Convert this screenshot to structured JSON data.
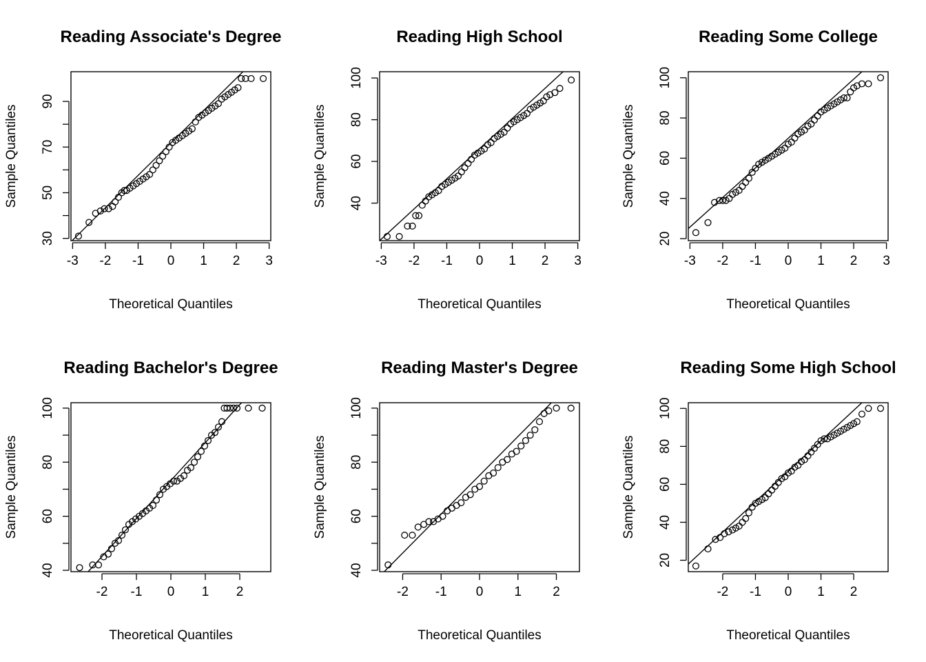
{
  "chart_data": [
    {
      "type": "scatter",
      "title": "Reading Associate's Degree",
      "xlabel": "Theoretical Quantiles",
      "ylabel": "Sample Quantiles",
      "xlim": [
        -3.05,
        3.05
      ],
      "ylim": [
        29,
        103
      ],
      "xticks": [
        -3,
        -2,
        -1,
        0,
        1,
        2,
        3
      ],
      "yticks": [
        30,
        40,
        50,
        60,
        70,
        80,
        90
      ],
      "ytick_labels": [
        "30",
        "50",
        "70",
        "90"
      ],
      "reference_line": [
        [
          -3.05,
          28.5
        ],
        [
          2.2,
          103
        ]
      ],
      "points": [
        [
          -2.82,
          31
        ],
        [
          -2.5,
          37
        ],
        [
          -2.3,
          41
        ],
        [
          -2.15,
          42
        ],
        [
          -2.03,
          43
        ],
        [
          -1.9,
          43
        ],
        [
          -1.78,
          44
        ],
        [
          -1.7,
          46
        ],
        [
          -1.6,
          48
        ],
        [
          -1.5,
          50
        ],
        [
          -1.42,
          51
        ],
        [
          -1.35,
          51
        ],
        [
          -1.25,
          52
        ],
        [
          -1.15,
          53
        ],
        [
          -1.05,
          54
        ],
        [
          -0.95,
          55
        ],
        [
          -0.85,
          56
        ],
        [
          -0.75,
          57
        ],
        [
          -0.65,
          58
        ],
        [
          -0.55,
          60
        ],
        [
          -0.45,
          62
        ],
        [
          -0.35,
          64
        ],
        [
          -0.25,
          66
        ],
        [
          -0.15,
          68
        ],
        [
          -0.05,
          70
        ],
        [
          0.05,
          72
        ],
        [
          0.15,
          73
        ],
        [
          0.25,
          74
        ],
        [
          0.35,
          75
        ],
        [
          0.45,
          76
        ],
        [
          0.55,
          77
        ],
        [
          0.65,
          78
        ],
        [
          0.75,
          81
        ],
        [
          0.85,
          83
        ],
        [
          0.95,
          84
        ],
        [
          1.05,
          85
        ],
        [
          1.15,
          86
        ],
        [
          1.25,
          87
        ],
        [
          1.35,
          88
        ],
        [
          1.45,
          89
        ],
        [
          1.55,
          91
        ],
        [
          1.65,
          92
        ],
        [
          1.75,
          93
        ],
        [
          1.85,
          94
        ],
        [
          1.95,
          95
        ],
        [
          2.05,
          96
        ],
        [
          2.15,
          100
        ],
        [
          2.28,
          100
        ],
        [
          2.45,
          100
        ],
        [
          2.82,
          100
        ]
      ]
    },
    {
      "type": "scatter",
      "title": "Reading High School",
      "xlabel": "Theoretical Quantiles",
      "ylabel": "Sample Quantiles",
      "xlim": [
        -3.05,
        3.05
      ],
      "ylim": [
        22,
        103
      ],
      "xticks": [
        -3,
        -2,
        -1,
        0,
        1,
        2,
        3
      ],
      "yticks": [
        40,
        60,
        80,
        100
      ],
      "ytick_labels": [
        "40",
        "60",
        "80",
        "100"
      ],
      "reference_line": [
        [
          -3.05,
          22
        ],
        [
          2.55,
          103
        ]
      ],
      "points": [
        [
          -2.82,
          24
        ],
        [
          -2.45,
          24
        ],
        [
          -2.2,
          29
        ],
        [
          -2.05,
          29
        ],
        [
          -1.95,
          34
        ],
        [
          -1.85,
          34
        ],
        [
          -1.75,
          39
        ],
        [
          -1.65,
          41
        ],
        [
          -1.55,
          43
        ],
        [
          -1.45,
          44
        ],
        [
          -1.35,
          45
        ],
        [
          -1.25,
          46
        ],
        [
          -1.15,
          48
        ],
        [
          -1.05,
          49
        ],
        [
          -0.95,
          50
        ],
        [
          -0.85,
          51
        ],
        [
          -0.75,
          52
        ],
        [
          -0.65,
          53
        ],
        [
          -0.55,
          55
        ],
        [
          -0.45,
          57
        ],
        [
          -0.35,
          59
        ],
        [
          -0.25,
          61
        ],
        [
          -0.15,
          63
        ],
        [
          -0.05,
          64
        ],
        [
          0.05,
          65
        ],
        [
          0.15,
          66
        ],
        [
          0.25,
          68
        ],
        [
          0.35,
          69
        ],
        [
          0.45,
          71
        ],
        [
          0.55,
          72
        ],
        [
          0.65,
          73
        ],
        [
          0.75,
          74
        ],
        [
          0.85,
          76
        ],
        [
          0.95,
          78
        ],
        [
          1.05,
          79
        ],
        [
          1.15,
          80
        ],
        [
          1.25,
          81
        ],
        [
          1.35,
          82
        ],
        [
          1.45,
          83
        ],
        [
          1.55,
          85
        ],
        [
          1.65,
          86
        ],
        [
          1.75,
          87
        ],
        [
          1.85,
          88
        ],
        [
          1.95,
          89
        ],
        [
          2.05,
          91
        ],
        [
          2.15,
          92
        ],
        [
          2.3,
          93
        ],
        [
          2.45,
          95
        ],
        [
          2.8,
          99
        ]
      ]
    },
    {
      "type": "scatter",
      "title": "Reading Some College",
      "xlabel": "Theoretical Quantiles",
      "ylabel": "Sample Quantiles",
      "xlim": [
        -3.05,
        3.05
      ],
      "ylim": [
        19,
        103
      ],
      "xticks": [
        -3,
        -2,
        -1,
        0,
        1,
        2,
        3
      ],
      "yticks": [
        20,
        40,
        60,
        80,
        100
      ],
      "ytick_labels": [
        "20",
        "40",
        "60",
        "80",
        "100"
      ],
      "reference_line": [
        [
          -3.05,
          25
        ],
        [
          2.25,
          103
        ]
      ],
      "points": [
        [
          -2.82,
          23
        ],
        [
          -2.45,
          28
        ],
        [
          -2.25,
          38
        ],
        [
          -2.1,
          39
        ],
        [
          -2.0,
          39
        ],
        [
          -1.9,
          39
        ],
        [
          -1.8,
          40
        ],
        [
          -1.7,
          42
        ],
        [
          -1.6,
          43
        ],
        [
          -1.5,
          44
        ],
        [
          -1.4,
          46
        ],
        [
          -1.3,
          48
        ],
        [
          -1.2,
          50
        ],
        [
          -1.1,
          53
        ],
        [
          -1.0,
          55
        ],
        [
          -0.9,
          57
        ],
        [
          -0.8,
          58
        ],
        [
          -0.7,
          59
        ],
        [
          -0.6,
          60
        ],
        [
          -0.5,
          61
        ],
        [
          -0.4,
          62
        ],
        [
          -0.3,
          63
        ],
        [
          -0.2,
          64
        ],
        [
          -0.1,
          65
        ],
        [
          0.0,
          67
        ],
        [
          0.1,
          68
        ],
        [
          0.2,
          70
        ],
        [
          0.3,
          72
        ],
        [
          0.4,
          73
        ],
        [
          0.5,
          74
        ],
        [
          0.6,
          76
        ],
        [
          0.7,
          77
        ],
        [
          0.8,
          79
        ],
        [
          0.9,
          81
        ],
        [
          1.0,
          83
        ],
        [
          1.1,
          84
        ],
        [
          1.2,
          85
        ],
        [
          1.3,
          86
        ],
        [
          1.4,
          87
        ],
        [
          1.5,
          88
        ],
        [
          1.6,
          89
        ],
        [
          1.7,
          90
        ],
        [
          1.8,
          90
        ],
        [
          1.9,
          93
        ],
        [
          2.0,
          95
        ],
        [
          2.1,
          96
        ],
        [
          2.25,
          97
        ],
        [
          2.45,
          97
        ],
        [
          2.82,
          100
        ]
      ]
    },
    {
      "type": "scatter",
      "title": "Reading Bachelor's Degree",
      "xlabel": "Theoretical Quantiles",
      "ylabel": "Sample Quantiles",
      "xlim": [
        -2.9,
        2.9
      ],
      "ylim": [
        39.5,
        102
      ],
      "xticks": [
        -2,
        -1,
        0,
        1,
        2
      ],
      "yticks": [
        40,
        50,
        60,
        70,
        80,
        90,
        100
      ],
      "ytick_labels": [
        "40",
        "60",
        "80",
        "100"
      ],
      "reference_line": [
        [
          -2.4,
          39.5
        ],
        [
          2.05,
          102
        ]
      ],
      "points": [
        [
          -2.65,
          41
        ],
        [
          -2.27,
          42
        ],
        [
          -2.1,
          42
        ],
        [
          -1.95,
          45
        ],
        [
          -1.82,
          46
        ],
        [
          -1.72,
          48
        ],
        [
          -1.62,
          50
        ],
        [
          -1.52,
          51
        ],
        [
          -1.42,
          53
        ],
        [
          -1.32,
          55
        ],
        [
          -1.22,
          57
        ],
        [
          -1.12,
          58
        ],
        [
          -1.02,
          59
        ],
        [
          -0.92,
          60
        ],
        [
          -0.82,
          61
        ],
        [
          -0.72,
          62
        ],
        [
          -0.62,
          63
        ],
        [
          -0.52,
          64
        ],
        [
          -0.42,
          66
        ],
        [
          -0.32,
          68
        ],
        [
          -0.22,
          70
        ],
        [
          -0.12,
          71
        ],
        [
          -0.02,
          72
        ],
        [
          0.08,
          73
        ],
        [
          0.18,
          73
        ],
        [
          0.28,
          74
        ],
        [
          0.38,
          75
        ],
        [
          0.48,
          77
        ],
        [
          0.58,
          78
        ],
        [
          0.68,
          80
        ],
        [
          0.78,
          82
        ],
        [
          0.88,
          84
        ],
        [
          0.98,
          86
        ],
        [
          1.08,
          88
        ],
        [
          1.18,
          90
        ],
        [
          1.28,
          91
        ],
        [
          1.38,
          93
        ],
        [
          1.48,
          95
        ],
        [
          1.55,
          100
        ],
        [
          1.63,
          100
        ],
        [
          1.72,
          100
        ],
        [
          1.82,
          100
        ],
        [
          1.92,
          100
        ],
        [
          2.25,
          100
        ],
        [
          2.65,
          100
        ]
      ]
    },
    {
      "type": "scatter",
      "title": "Reading Master's Degree",
      "xlabel": "Theoretical Quantiles",
      "ylabel": "Sample Quantiles",
      "xlim": [
        -2.6,
        2.6
      ],
      "ylim": [
        39.5,
        102
      ],
      "xticks": [
        -2,
        -1,
        0,
        1,
        2
      ],
      "xtick_labels": [
        "-2",
        "-1",
        "0",
        "1",
        "2"
      ],
      "yticks": [
        40,
        50,
        60,
        70,
        80,
        90,
        100
      ],
      "ytick_labels": [
        "40",
        "60",
        "80",
        "100"
      ],
      "reference_line": [
        [
          -2.48,
          39.5
        ],
        [
          1.87,
          102
        ]
      ],
      "points": [
        [
          -2.38,
          42
        ],
        [
          -1.95,
          53
        ],
        [
          -1.75,
          53
        ],
        [
          -1.6,
          56
        ],
        [
          -1.45,
          57
        ],
        [
          -1.32,
          58
        ],
        [
          -1.2,
          58
        ],
        [
          -1.08,
          59
        ],
        [
          -0.96,
          60
        ],
        [
          -0.84,
          62
        ],
        [
          -0.72,
          63
        ],
        [
          -0.6,
          64
        ],
        [
          -0.48,
          65
        ],
        [
          -0.36,
          67
        ],
        [
          -0.24,
          68
        ],
        [
          -0.12,
          70
        ],
        [
          0.0,
          71
        ],
        [
          0.12,
          73
        ],
        [
          0.24,
          75
        ],
        [
          0.36,
          76
        ],
        [
          0.48,
          78
        ],
        [
          0.6,
          80
        ],
        [
          0.72,
          81
        ],
        [
          0.84,
          83
        ],
        [
          0.96,
          84
        ],
        [
          1.08,
          86
        ],
        [
          1.2,
          88
        ],
        [
          1.32,
          90
        ],
        [
          1.44,
          92
        ],
        [
          1.56,
          95
        ],
        [
          1.68,
          98
        ],
        [
          1.8,
          99
        ],
        [
          2.0,
          100
        ],
        [
          2.38,
          100
        ]
      ]
    },
    {
      "type": "scatter",
      "title": "Reading Some High School",
      "xlabel": "Theoretical Quantiles",
      "ylabel": "Sample Quantiles",
      "xlim": [
        -3.05,
        3.05
      ],
      "ylim": [
        14,
        103
      ],
      "xticks": [
        -2,
        -1,
        0,
        1,
        2
      ],
      "yticks": [
        20,
        40,
        60,
        80,
        100
      ],
      "ytick_labels": [
        "20",
        "40",
        "60",
        "80",
        "100"
      ],
      "reference_line": [
        [
          -3.05,
          18
        ],
        [
          2.25,
          103
        ]
      ],
      "points": [
        [
          -2.82,
          17
        ],
        [
          -2.45,
          26
        ],
        [
          -2.22,
          31
        ],
        [
          -2.08,
          32
        ],
        [
          -1.95,
          34
        ],
        [
          -1.82,
          35
        ],
        [
          -1.7,
          36
        ],
        [
          -1.6,
          37
        ],
        [
          -1.5,
          38
        ],
        [
          -1.4,
          40
        ],
        [
          -1.3,
          42
        ],
        [
          -1.2,
          45
        ],
        [
          -1.1,
          48
        ],
        [
          -1.0,
          50
        ],
        [
          -0.9,
          51
        ],
        [
          -0.8,
          52
        ],
        [
          -0.7,
          53
        ],
        [
          -0.6,
          55
        ],
        [
          -0.5,
          57
        ],
        [
          -0.4,
          59
        ],
        [
          -0.3,
          61
        ],
        [
          -0.2,
          63
        ],
        [
          -0.1,
          64
        ],
        [
          0.0,
          66
        ],
        [
          0.1,
          67
        ],
        [
          0.2,
          69
        ],
        [
          0.3,
          70
        ],
        [
          0.4,
          72
        ],
        [
          0.5,
          73
        ],
        [
          0.6,
          75
        ],
        [
          0.7,
          77
        ],
        [
          0.8,
          79
        ],
        [
          0.9,
          81
        ],
        [
          1.0,
          83
        ],
        [
          1.1,
          84
        ],
        [
          1.2,
          84
        ],
        [
          1.3,
          85
        ],
        [
          1.4,
          86
        ],
        [
          1.5,
          87
        ],
        [
          1.6,
          88
        ],
        [
          1.7,
          89
        ],
        [
          1.8,
          90
        ],
        [
          1.9,
          91
        ],
        [
          2.0,
          92
        ],
        [
          2.1,
          93
        ],
        [
          2.25,
          97
        ],
        [
          2.45,
          100
        ],
        [
          2.82,
          100
        ]
      ]
    }
  ]
}
